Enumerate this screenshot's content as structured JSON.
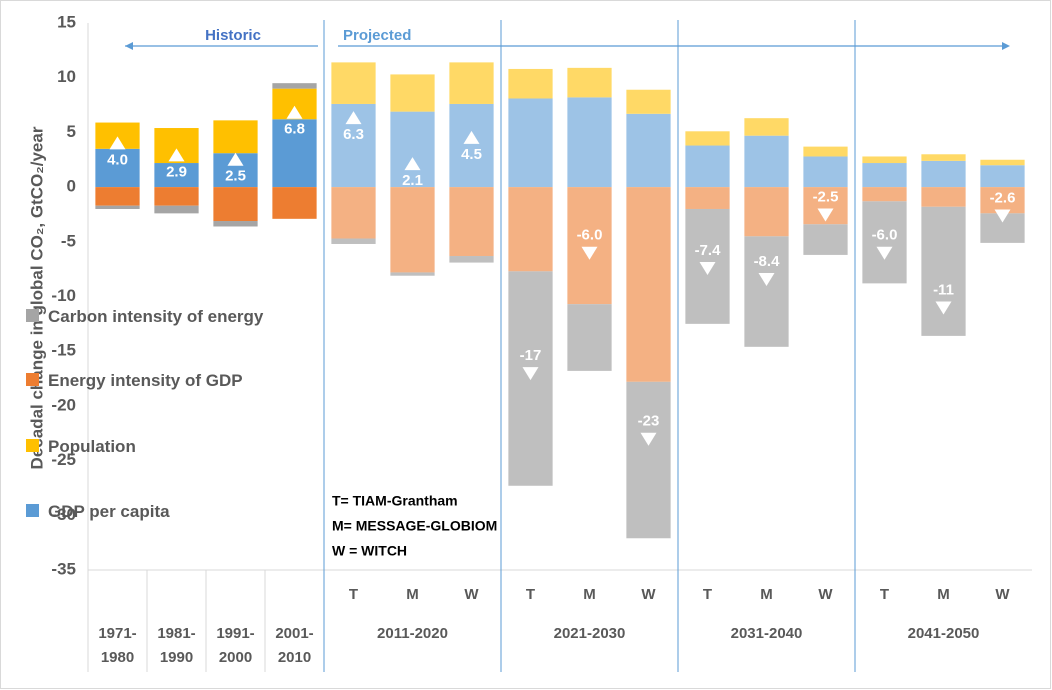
{
  "chart_data": {
    "type": "stacked-bar",
    "y_label": "Decadal change in global CO₂, GtCO₂/year",
    "categories": [
      "1971-1980",
      "1981-1990",
      "1991-2000",
      "2001-2010",
      "T",
      "M",
      "W",
      "T",
      "M",
      "W",
      "T",
      "M",
      "W",
      "T",
      "M",
      "W"
    ],
    "group_labels": [
      "2011-2020",
      "2021-2030",
      "2031-2040",
      "2041-2050"
    ],
    "series": [
      {
        "name": "GDP per capita",
        "color": "#5b9bd5",
        "projected_color": "#9dc3e6",
        "values": [
          3.5,
          2.2,
          3.1,
          6.2,
          7.6,
          6.9,
          7.6,
          8.1,
          8.2,
          6.7,
          3.8,
          4.7,
          2.8,
          2.2,
          2.4,
          2.0
        ]
      },
      {
        "name": "Population",
        "color": "#ffc000",
        "projected_color": "#ffd966",
        "values": [
          2.4,
          3.2,
          3.0,
          2.8,
          3.8,
          3.4,
          3.8,
          2.7,
          2.7,
          2.2,
          1.3,
          1.6,
          0.9,
          0.6,
          0.6,
          0.5
        ]
      },
      {
        "name": "Energy intensity of GDP",
        "color": "#ed7d31",
        "projected_color": "#f4b183",
        "values": [
          -1.7,
          -1.7,
          -3.1,
          -2.9,
          -4.7,
          -7.8,
          -6.3,
          -7.7,
          -10.7,
          -17.8,
          -2.0,
          -4.5,
          -3.4,
          -1.3,
          -1.8,
          -2.4
        ]
      },
      {
        "name": "Carbon intensity of energy",
        "color": "#a5a5a5",
        "projected_color": "#bfbfbf",
        "values": [
          -0.3,
          -0.7,
          -0.5,
          0.5,
          -0.5,
          -0.3,
          -0.6,
          -19.6,
          -6.1,
          -14.3,
          -10.5,
          -10.1,
          -2.8,
          -7.5,
          -11.8,
          -2.7
        ]
      }
    ],
    "net": {
      "values": [
        4.0,
        2.9,
        2.5,
        6.8,
        6.3,
        2.1,
        4.5,
        -17,
        -6.0,
        -23,
        -7.4,
        -8.4,
        -2.5,
        -6.0,
        -11,
        -2.6
      ],
      "value_labels": [
        "4.0",
        "2.9",
        "2.5",
        "6.8",
        "6.3",
        "2.1",
        "4.5",
        "-17",
        "-6.0",
        "-23",
        "-7.4",
        "-8.4",
        "-2.5",
        "-6.0",
        "-11",
        "-2.6"
      ]
    },
    "annotations": {
      "historic": "Historic",
      "projected": "Projected",
      "key": [
        "T= TIAM-Grantham",
        "M= MESSAGE-GLOBIOM",
        "W = WITCH"
      ]
    },
    "ylim": [
      -35,
      15
    ],
    "yticks": [
      -35,
      -30,
      -25,
      -20,
      -15,
      -10,
      -5,
      0,
      5,
      10,
      15
    ],
    "grid": false
  }
}
